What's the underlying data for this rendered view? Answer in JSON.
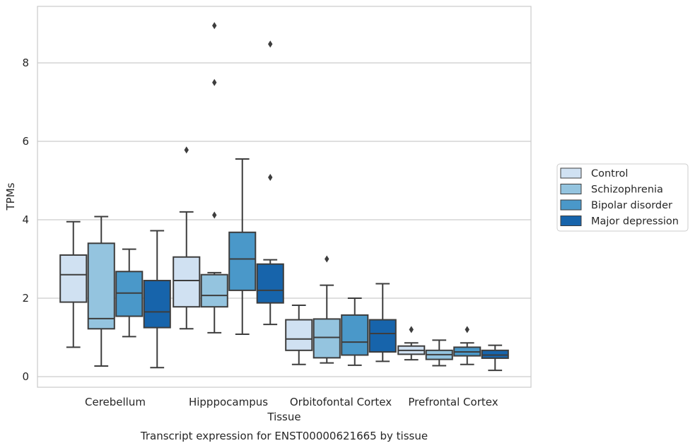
{
  "chart_data": {
    "type": "box",
    "title": "Transcript expression for ENST00000621665 by tissue",
    "xlabel": "Tissue",
    "ylabel": "TPMs",
    "ylim": [
      -0.28,
      9.4
    ],
    "yticks": [
      0,
      2,
      4,
      6,
      8
    ],
    "grid": "horizontal",
    "legend_position": "right",
    "categories": [
      "Cerebellum",
      "Hipppocampus",
      "Orbitofontal Cortex",
      "Prefrontal Cortex"
    ],
    "series": [
      {
        "name": "Control",
        "color": "#d0e1f2",
        "boxes": [
          {
            "min": 0.75,
            "q1": 1.9,
            "median": 2.6,
            "q3": 3.1,
            "max": 3.95,
            "outliers": []
          },
          {
            "min": 1.22,
            "q1": 1.78,
            "median": 2.45,
            "q3": 3.05,
            "max": 4.2,
            "outliers": [
              5.78
            ]
          },
          {
            "min": 0.31,
            "q1": 0.67,
            "median": 0.96,
            "q3": 1.45,
            "max": 1.82,
            "outliers": []
          },
          {
            "min": 0.43,
            "q1": 0.57,
            "median": 0.67,
            "q3": 0.78,
            "max": 0.86,
            "outliers": [
              1.2
            ]
          }
        ]
      },
      {
        "name": "Schizophrenia",
        "color": "#94c4df",
        "boxes": [
          {
            "min": 0.27,
            "q1": 1.22,
            "median": 1.48,
            "q3": 3.4,
            "max": 4.08,
            "outliers": []
          },
          {
            "min": 1.12,
            "q1": 1.78,
            "median": 2.07,
            "q3": 2.6,
            "max": 2.65,
            "outliers": [
              4.12,
              7.5,
              8.95
            ]
          },
          {
            "min": 0.35,
            "q1": 0.48,
            "median": 1.0,
            "q3": 1.47,
            "max": 2.33,
            "outliers": [
              3.0
            ]
          },
          {
            "min": 0.28,
            "q1": 0.44,
            "median": 0.56,
            "q3": 0.67,
            "max": 0.93,
            "outliers": []
          }
        ]
      },
      {
        "name": "Bipolar disorder",
        "color": "#4a98c9",
        "boxes": [
          {
            "min": 1.02,
            "q1": 1.54,
            "median": 2.13,
            "q3": 2.68,
            "max": 3.25,
            "outliers": []
          },
          {
            "min": 1.08,
            "q1": 2.2,
            "median": 3.0,
            "q3": 3.68,
            "max": 5.55,
            "outliers": []
          },
          {
            "min": 0.29,
            "q1": 0.55,
            "median": 0.88,
            "q3": 1.57,
            "max": 2.0,
            "outliers": []
          },
          {
            "min": 0.31,
            "q1": 0.53,
            "median": 0.63,
            "q3": 0.75,
            "max": 0.86,
            "outliers": [
              1.2
            ]
          }
        ]
      },
      {
        "name": "Major depression",
        "color": "#1764ab",
        "boxes": [
          {
            "min": 0.23,
            "q1": 1.25,
            "median": 1.65,
            "q3": 2.45,
            "max": 3.72,
            "outliers": []
          },
          {
            "min": 1.33,
            "q1": 1.88,
            "median": 2.2,
            "q3": 2.87,
            "max": 2.98,
            "outliers": [
              5.08,
              8.48
            ]
          },
          {
            "min": 0.39,
            "q1": 0.63,
            "median": 1.1,
            "q3": 1.45,
            "max": 2.37,
            "outliers": []
          },
          {
            "min": 0.16,
            "q1": 0.47,
            "median": 0.55,
            "q3": 0.67,
            "max": 0.8,
            "outliers": []
          }
        ]
      }
    ]
  }
}
